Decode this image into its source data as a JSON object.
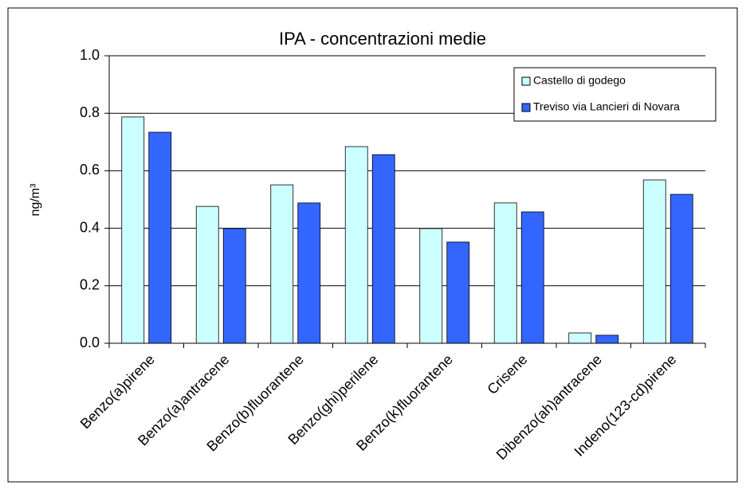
{
  "chart_data": {
    "type": "bar",
    "title": "IPA - concentrazioni medie",
    "y_label": "ng/m³",
    "categories": [
      "Benzo(a)pirene",
      "Benzo(a)antracene",
      "Benzo(b)fluorantene",
      "Benzo(ghi)perilene",
      "Benzo(k)fluorantene",
      "Crisene",
      "Dibenzo(ah)antracene",
      "Indeno(123-cd)pirene"
    ],
    "series": [
      {
        "name": "Castello di godego",
        "color": "#ccffff",
        "values": [
          0.787,
          0.476,
          0.551,
          0.684,
          0.399,
          0.488,
          0.036,
          0.568
        ]
      },
      {
        "name": "Treviso via Lancieri di Novara",
        "color": "#3366ff",
        "values": [
          0.734,
          0.399,
          0.488,
          0.656,
          0.352,
          0.457,
          0.028,
          0.518
        ]
      }
    ],
    "ylim": [
      0,
      1
    ],
    "yticks": [
      {
        "value": 0,
        "label": "0.0"
      },
      0.2,
      0.4,
      0.6,
      0.8,
      {
        "value": 1,
        "label": "1.0"
      }
    ],
    "grid": true,
    "legend": "top-right"
  }
}
